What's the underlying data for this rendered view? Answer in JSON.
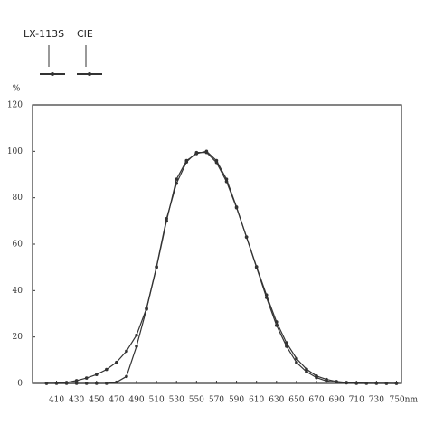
{
  "chart_data": {
    "type": "line",
    "y_label": "%",
    "x": [
      400,
      410,
      420,
      430,
      440,
      450,
      460,
      470,
      480,
      490,
      500,
      510,
      520,
      530,
      540,
      550,
      560,
      570,
      580,
      590,
      600,
      610,
      620,
      630,
      640,
      650,
      660,
      670,
      680,
      690,
      700,
      710,
      720,
      730,
      740,
      750
    ],
    "series": [
      {
        "name": "LX-113S",
        "color": "#333333",
        "values": [
          0,
          0,
          0,
          0,
          0,
          0,
          0,
          0.5,
          3,
          16,
          32,
          50,
          70,
          88,
          96,
          99,
          100,
          96,
          88,
          76,
          63,
          50,
          37,
          25,
          16,
          9,
          5,
          2.5,
          1,
          0.5,
          0.2,
          0,
          0,
          0,
          0,
          0
        ]
      },
      {
        "name": "CIE",
        "color": "#333333",
        "values": [
          0.04,
          0.12,
          0.4,
          1.2,
          2.3,
          3.8,
          6,
          9.1,
          13.9,
          20.8,
          32.3,
          50.3,
          71,
          86.2,
          95.4,
          99.5,
          99.5,
          95.2,
          87,
          75.7,
          63.1,
          50.3,
          38.1,
          26.5,
          17.5,
          10.7,
          6.1,
          3.2,
          1.7,
          0.8,
          0.4,
          0.2,
          0.1,
          0.05,
          0.02,
          0.01
        ]
      }
    ],
    "xlim": [
      386,
      755
    ],
    "xticks": [
      410,
      430,
      450,
      470,
      490,
      510,
      530,
      550,
      570,
      590,
      610,
      630,
      650,
      670,
      690,
      710,
      730,
      {
        "value": 750,
        "label": "750nm"
      }
    ],
    "ylim": [
      0,
      120
    ],
    "yticks": [
      0,
      20,
      40,
      60,
      80,
      100,
      120
    ],
    "grid": false
  }
}
